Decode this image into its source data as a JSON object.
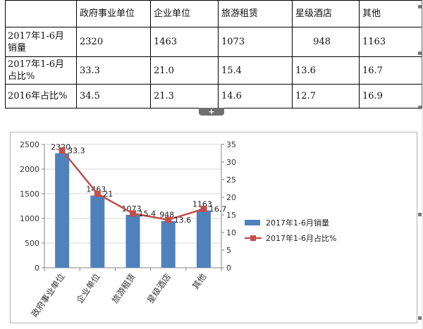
{
  "table": {
    "header": [
      "",
      "政府事业单位",
      "企业单位",
      "旅游租赁",
      "星级酒店",
      "其他"
    ],
    "rows": [
      {
        "label": "2017年1-6月销量",
        "cells": [
          "2320",
          "1463",
          "1073",
          "948",
          "1163"
        ]
      },
      {
        "label": "2017年1-6月占比%",
        "cells": [
          "33.3",
          "21.0",
          "15.4",
          "13.6",
          "16.7"
        ]
      },
      {
        "label": "2016年占比%",
        "cells": [
          "34.5",
          "21.3",
          "14.6",
          "12.7",
          "16.9"
        ]
      }
    ],
    "handle_glyph": "+"
  },
  "chart_data": {
    "type": "bar",
    "categories": [
      "政府事业单位",
      "企业单位",
      "旅游租赁",
      "星级酒店",
      "其他"
    ],
    "series": [
      {
        "name": "2017年1-6月销量",
        "type": "bar",
        "axis": "left",
        "values": [
          2320,
          1463,
          1073,
          948,
          1163
        ],
        "labels": [
          "2320",
          "1463",
          "1073",
          "948",
          "1163"
        ],
        "color": "#4f81bd"
      },
      {
        "name": "2017年1-6月占比%",
        "type": "line",
        "axis": "right",
        "values": [
          33.3,
          21,
          15.4,
          13.6,
          16.7
        ],
        "labels": [
          "33.3",
          "21",
          "15.4",
          "13.6",
          "16.7"
        ],
        "color": "#c0504d"
      }
    ],
    "y_left": {
      "min": 0,
      "max": 2500,
      "ticks": [
        0,
        500,
        1000,
        1500,
        2000,
        2500
      ]
    },
    "y_right": {
      "min": 0,
      "max": 35,
      "ticks": [
        0,
        5,
        10,
        15,
        20,
        25,
        30,
        35
      ]
    },
    "grid": true,
    "legend_position": "right"
  }
}
